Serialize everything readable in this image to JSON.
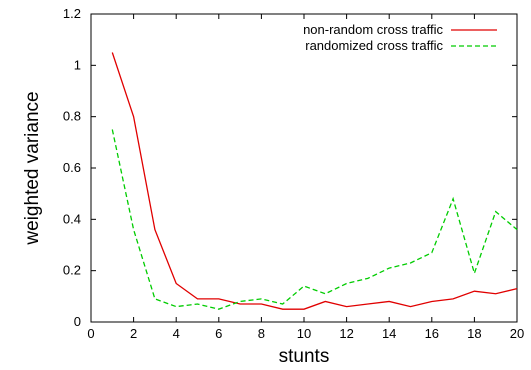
{
  "chart_data": {
    "type": "line",
    "title": "",
    "xlabel": "stunts",
    "ylabel": "weighted variance",
    "xlim": [
      0,
      20
    ],
    "ylim": [
      0,
      1.2
    ],
    "xticks": [
      "0",
      "2",
      "4",
      "6",
      "8",
      "10",
      "12",
      "14",
      "16",
      "18",
      "20"
    ],
    "yticks": [
      "0",
      "0.2",
      "0.4",
      "0.6",
      "0.8",
      "1",
      "1.2"
    ],
    "grid": false,
    "legend_position": "top-right",
    "x": [
      1,
      2,
      3,
      4,
      5,
      6,
      7,
      8,
      9,
      10,
      11,
      12,
      13,
      14,
      15,
      16,
      17,
      18,
      19,
      20
    ],
    "series": [
      {
        "name": "non-random cross traffic",
        "color": "#e00000",
        "dash": "solid",
        "values": [
          1.05,
          0.8,
          0.36,
          0.15,
          0.09,
          0.09,
          0.07,
          0.07,
          0.05,
          0.05,
          0.08,
          0.06,
          0.07,
          0.08,
          0.06,
          0.08,
          0.09,
          0.12,
          0.11,
          0.13
        ]
      },
      {
        "name": "randomized cross traffic",
        "color": "#00cc00",
        "dash": "dashed",
        "values": [
          0.75,
          0.36,
          0.09,
          0.06,
          0.07,
          0.05,
          0.08,
          0.09,
          0.07,
          0.14,
          0.11,
          0.15,
          0.17,
          0.21,
          0.23,
          0.27,
          0.48,
          0.19,
          0.43,
          0.36
        ]
      }
    ]
  }
}
